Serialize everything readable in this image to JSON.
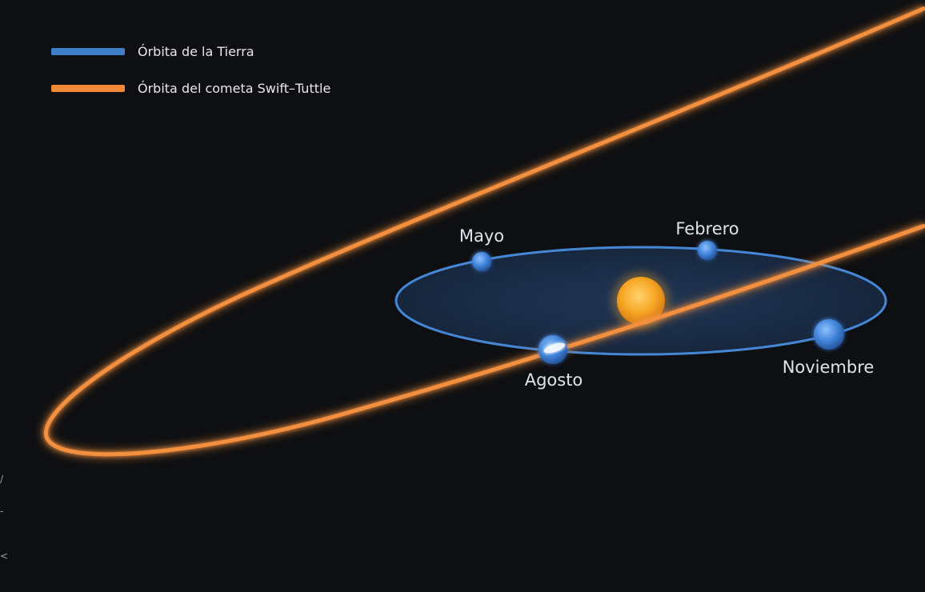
{
  "legend": {
    "earth_orbit": {
      "label": "Órbita de la Tierra",
      "color": "#3f7fc8"
    },
    "comet_orbit": {
      "label": "Órbita del cometa Swift–Tuttle",
      "color": "#f08a36"
    }
  },
  "months": {
    "may": "Mayo",
    "february": "Febrero",
    "august": "Agosto",
    "november": "Noviembre"
  },
  "colors": {
    "background": "#0d0f12",
    "earth_orbit_fill": "#1a2b45",
    "earth_orbit_stroke": "#4a8ee0",
    "earth": "#4a8fe0",
    "sun": "#f5a623",
    "comet_orbit": "#f08a36"
  },
  "edge_marks": [
    "/",
    "-",
    "<"
  ]
}
